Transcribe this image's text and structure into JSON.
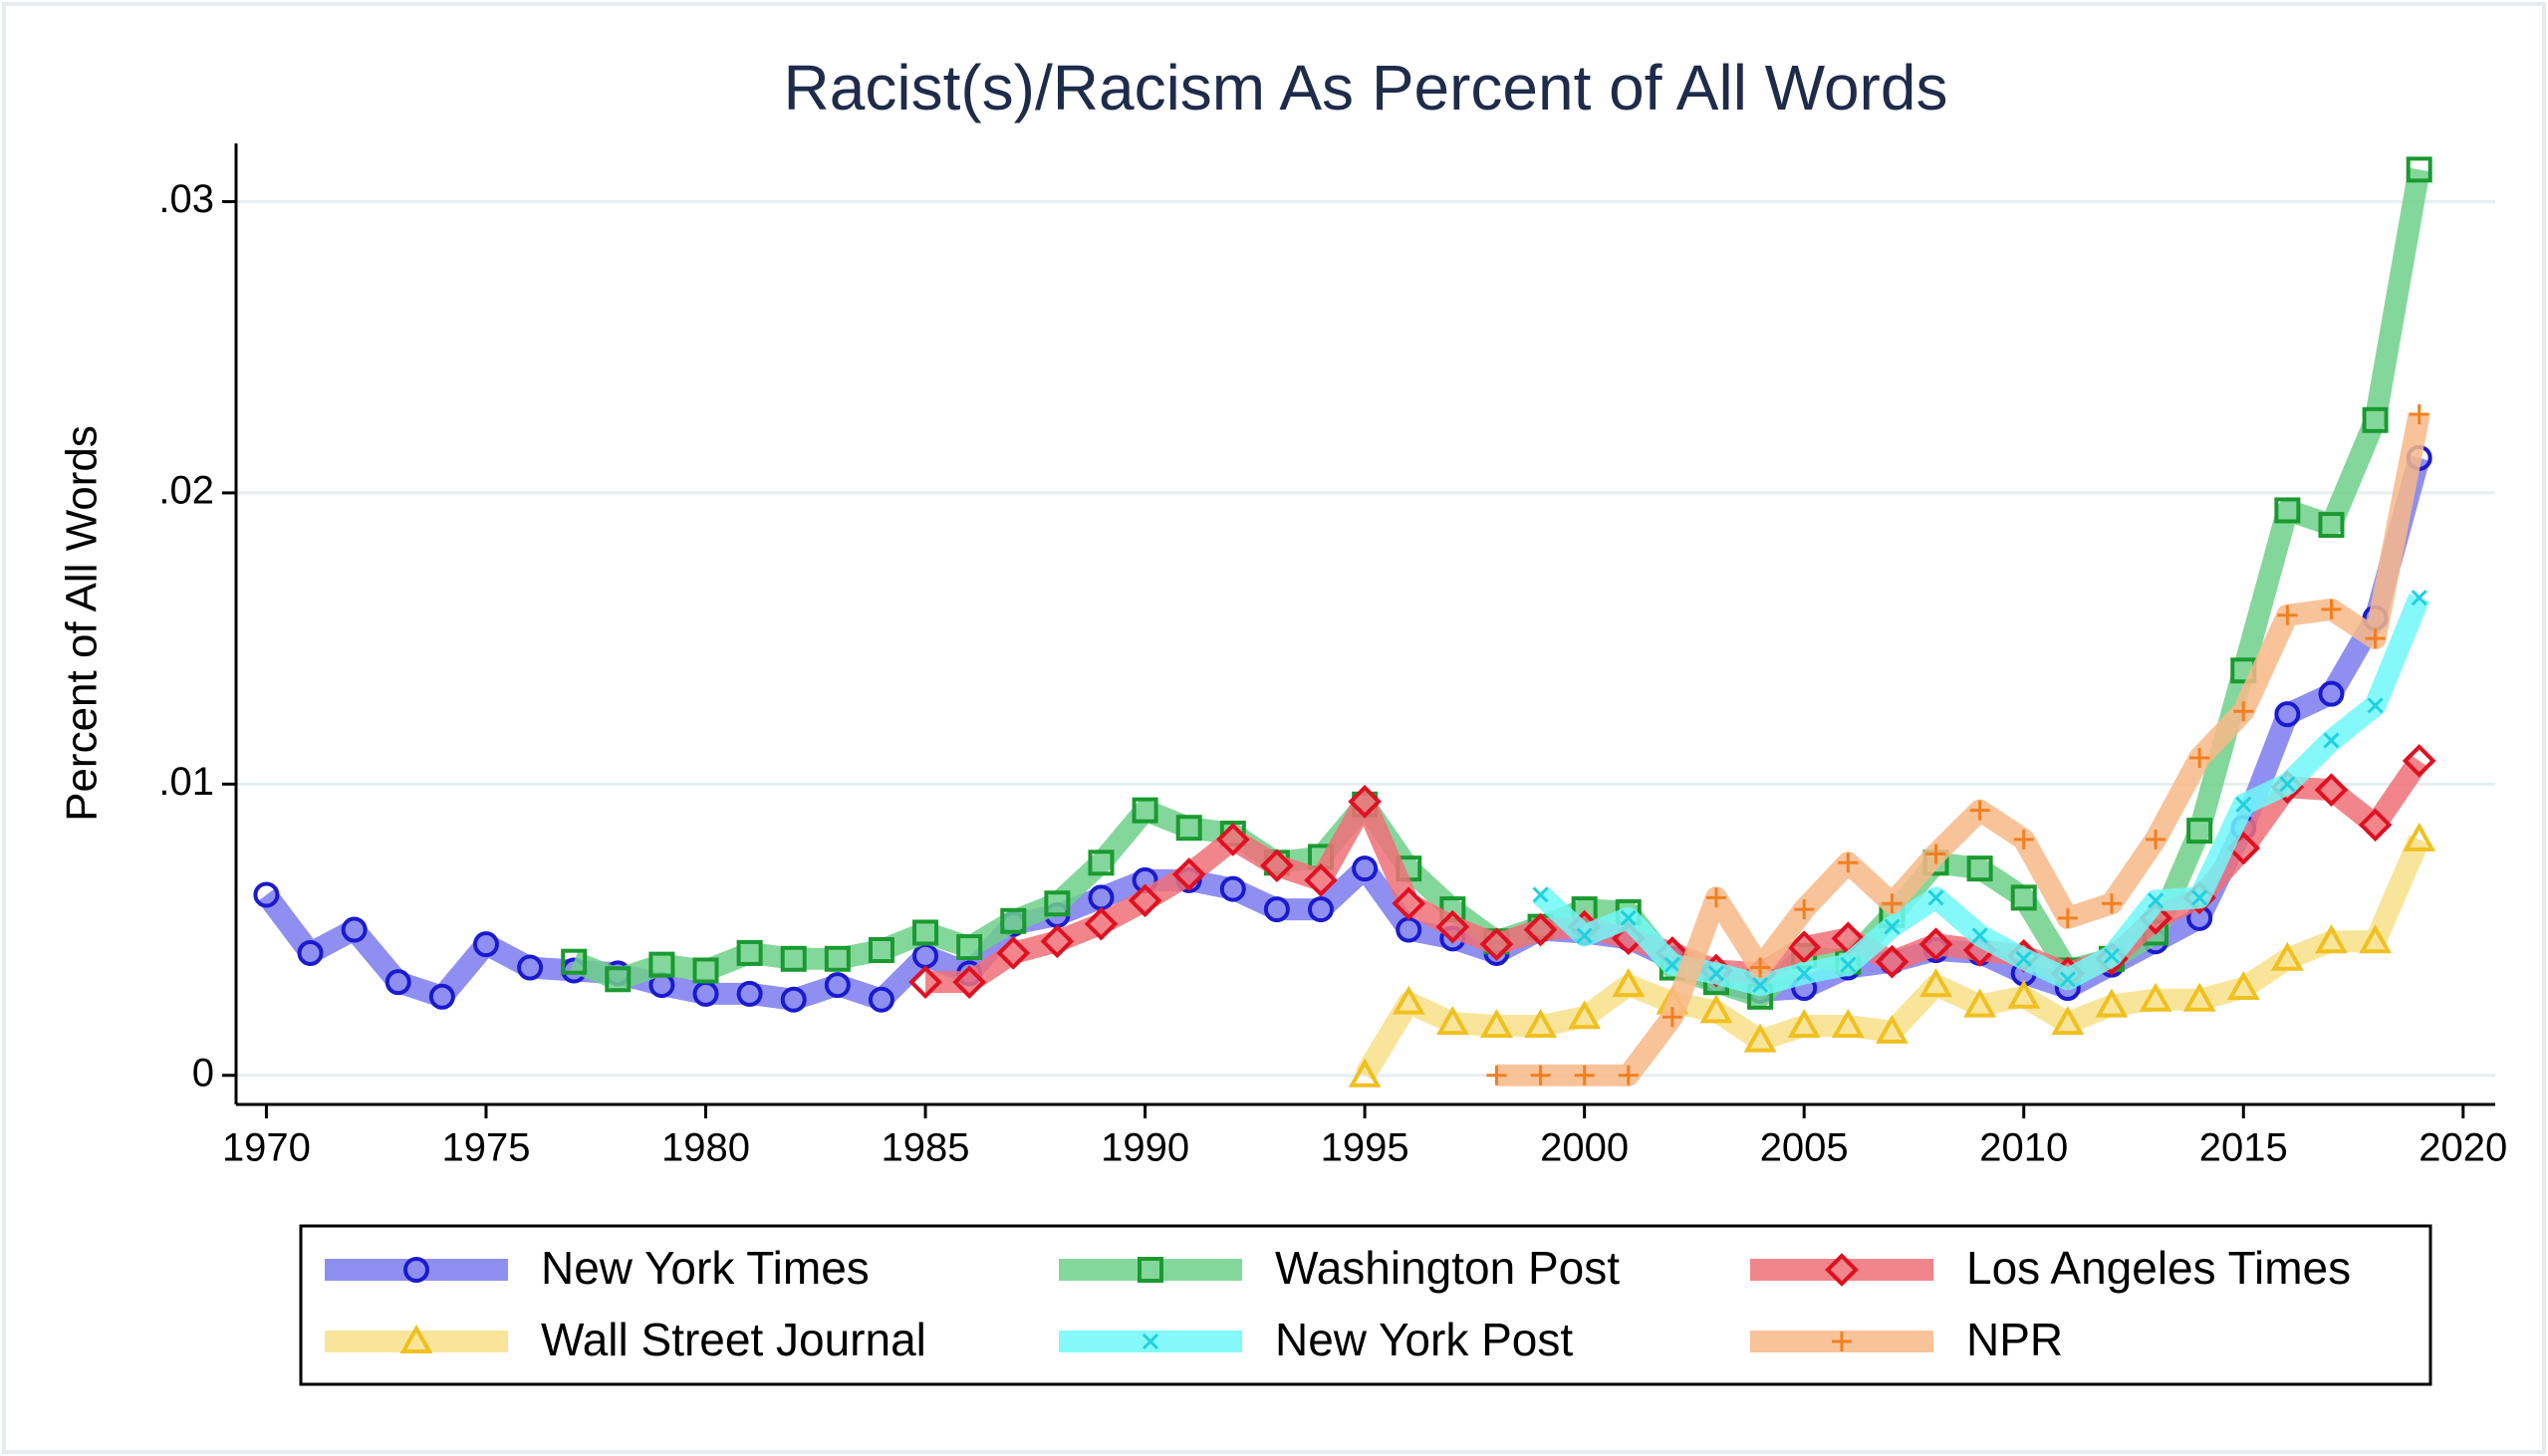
{
  "chart_data": {
    "type": "line",
    "title": "Racist(s)/Racism As Percent of All Words",
    "y_label": "Percent of All Words",
    "x": [
      1970,
      1971,
      1972,
      1973,
      1974,
      1975,
      1976,
      1977,
      1978,
      1979,
      1980,
      1981,
      1982,
      1983,
      1984,
      1985,
      1986,
      1987,
      1988,
      1989,
      1990,
      1991,
      1992,
      1993,
      1994,
      1995,
      1996,
      1997,
      1998,
      1999,
      2000,
      2001,
      2002,
      2003,
      2004,
      2005,
      2006,
      2007,
      2008,
      2009,
      2010,
      2011,
      2012,
      2013,
      2014,
      2015,
      2016,
      2017,
      2018,
      2019
    ],
    "xlim": [
      1969.31,
      2020.73
    ],
    "xticks": [
      1970,
      1975,
      1980,
      1985,
      1990,
      1995,
      2000,
      2005,
      2010,
      2015,
      2020
    ],
    "ylim": [
      -0.001,
      0.032
    ],
    "yticks": [
      0,
      {
        "value": 0.01,
        "label": ".01"
      },
      {
        "value": 0.02,
        "label": ".02"
      },
      {
        "value": 0.03,
        "label": ".03"
      }
    ],
    "grid": true,
    "legend": "bottom",
    "series": [
      {
        "name": "New York Times",
        "color": "#7b7bf0",
        "marker": "circle",
        "marker_color": "#1a1ad0",
        "values": [
          0.0062,
          0.0042,
          0.005,
          0.0032,
          0.0027,
          0.0045,
          0.0037,
          0.0036,
          0.0035,
          0.0031,
          0.0028,
          0.0028,
          0.0026,
          0.0031,
          0.0026,
          0.0041,
          0.0035,
          0.0052,
          0.0055,
          0.0061,
          0.0067,
          0.0067,
          0.0064,
          0.0057,
          0.0057,
          0.0071,
          0.005,
          0.0047,
          0.0042,
          0.005,
          0.0049,
          0.0047,
          0.004,
          0.0032,
          0.0029,
          0.003,
          0.0037,
          0.0039,
          0.0043,
          0.0042,
          0.0035,
          0.003,
          0.0038,
          0.0046,
          0.0054,
          0.0085,
          0.0124,
          0.0131,
          0.0157,
          0.0212
        ]
      },
      {
        "name": "Washington Post",
        "color": "#6fd08a",
        "marker": "square",
        "marker_color": "#1a9a30",
        "values": [
          null,
          null,
          null,
          null,
          null,
          null,
          null,
          0.0039,
          0.0033,
          0.0038,
          0.0036,
          0.0042,
          0.004,
          0.004,
          0.0043,
          0.0049,
          0.0044,
          0.0053,
          0.0059,
          0.0073,
          0.0091,
          0.0085,
          0.0083,
          0.0073,
          0.0075,
          0.0093,
          0.0071,
          0.0057,
          0.0046,
          0.0051,
          0.0057,
          0.0056,
          0.0037,
          0.0032,
          0.0027,
          0.0041,
          0.0039,
          0.0055,
          0.0073,
          0.0071,
          0.0061,
          0.0036,
          0.004,
          0.0049,
          0.0084,
          0.0139,
          0.0194,
          0.0189,
          0.0225,
          0.0311
        ]
      },
      {
        "name": "Los Angeles Times",
        "color": "#f07078",
        "marker": "diamond",
        "marker_color": "#e01020",
        "values": [
          null,
          null,
          null,
          null,
          null,
          null,
          null,
          null,
          null,
          null,
          null,
          null,
          null,
          null,
          null,
          0.0032,
          0.0032,
          0.0042,
          0.0046,
          0.0052,
          0.006,
          0.0069,
          0.0081,
          0.0072,
          0.0067,
          0.0094,
          0.0059,
          0.0051,
          0.0045,
          0.005,
          0.0051,
          0.0047,
          0.0042,
          0.0036,
          0.0035,
          0.0044,
          0.0047,
          0.0039,
          0.0045,
          0.0043,
          0.0041,
          0.0035,
          0.004,
          0.0054,
          0.0061,
          0.0078,
          0.0099,
          0.0098,
          0.0086,
          0.0108
        ]
      },
      {
        "name": "Wall Street Journal",
        "color": "#f8e088",
        "marker": "triangle",
        "marker_color": "#f0c020",
        "values": [
          null,
          null,
          null,
          null,
          null,
          null,
          null,
          null,
          null,
          null,
          null,
          null,
          null,
          null,
          null,
          null,
          null,
          null,
          null,
          null,
          null,
          null,
          null,
          null,
          null,
          0,
          0.0025,
          0.0018,
          0.0017,
          0.0017,
          0.002,
          0.0031,
          0.0025,
          0.0022,
          0.0012,
          0.0017,
          0.0017,
          0.0015,
          0.0031,
          0.0024,
          0.0027,
          0.0018,
          0.0024,
          0.0026,
          0.0026,
          0.003,
          0.004,
          0.0046,
          0.0046,
          0.0081
        ]
      },
      {
        "name": "New York Post",
        "color": "#70f8f8",
        "marker": "x",
        "marker_color": "#20d0e0",
        "values": [
          null,
          null,
          null,
          null,
          null,
          null,
          null,
          null,
          null,
          null,
          null,
          null,
          null,
          null,
          null,
          null,
          null,
          null,
          null,
          null,
          null,
          null,
          null,
          null,
          null,
          null,
          null,
          null,
          null,
          0.0062,
          0.0048,
          0.0054,
          0.0038,
          0.0035,
          0.0031,
          0.0035,
          0.0038,
          0.0051,
          0.0061,
          0.0048,
          0.004,
          0.0033,
          0.0041,
          0.006,
          0.0061,
          0.0093,
          0.01,
          0.0115,
          0.0127,
          0.0164
        ]
      },
      {
        "name": "NPR",
        "color": "#f8b888",
        "marker": "plus",
        "marker_color": "#f08020",
        "values": [
          null,
          null,
          null,
          null,
          null,
          null,
          null,
          null,
          null,
          null,
          null,
          null,
          null,
          null,
          null,
          null,
          null,
          null,
          null,
          null,
          null,
          null,
          null,
          null,
          null,
          null,
          null,
          null,
          0,
          0,
          0,
          0,
          0.002,
          0.0061,
          0.0037,
          0.0057,
          0.0073,
          0.0059,
          0.0076,
          0.0091,
          0.0081,
          0.0054,
          0.0059,
          0.0081,
          0.0109,
          0.0125,
          0.0158,
          0.016,
          0.015,
          0.0227
        ]
      }
    ]
  }
}
